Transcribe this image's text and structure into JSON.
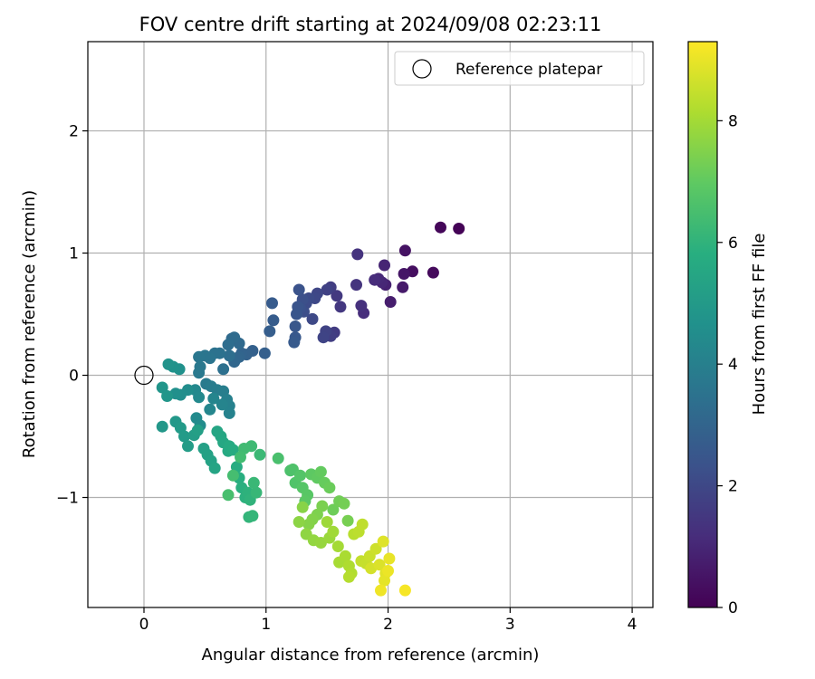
{
  "chart_data": {
    "type": "scatter",
    "title": "FOV centre drift starting at 2024/09/08 02:23:11",
    "xlabel": "Angular distance from reference (arcmin)",
    "ylabel": "Rotation from reference (arcmin)",
    "xlim": [
      -0.46,
      4.17
    ],
    "ylim": [
      -1.9,
      2.73
    ],
    "xticks": [
      0,
      1,
      2,
      3,
      4
    ],
    "yticks": [
      -1,
      0,
      1,
      2
    ],
    "xtick_labels": [
      "0",
      "1",
      "2",
      "3",
      "4"
    ],
    "ytick_labels": [
      "−1",
      "0",
      "1",
      "2"
    ],
    "grid": true,
    "legend_position": "top-right",
    "legend": [
      {
        "label": "Reference platepar",
        "marker": "open-circle"
      }
    ],
    "reference_point": {
      "x": 0,
      "y": 0
    },
    "colorbar": {
      "label": "Hours from first FF file",
      "colormap": "viridis",
      "range": [
        0,
        9.3
      ],
      "ticks": [
        0,
        2,
        4,
        6,
        8
      ],
      "tick_labels": [
        "0",
        "2",
        "4",
        "6",
        "8"
      ]
    },
    "points_xyc": [
      [
        2.58,
        1.2,
        0.05
      ],
      [
        2.43,
        1.21,
        0.15
      ],
      [
        2.37,
        0.84,
        0.25
      ],
      [
        2.2,
        0.85,
        0.35
      ],
      [
        2.14,
        1.02,
        0.45
      ],
      [
        2.13,
        0.83,
        0.55
      ],
      [
        2.12,
        0.72,
        0.65
      ],
      [
        2.02,
        0.6,
        0.75
      ],
      [
        1.98,
        0.74,
        0.85
      ],
      [
        1.97,
        0.9,
        0.95
      ],
      [
        1.95,
        0.76,
        1.0
      ],
      [
        1.92,
        0.79,
        1.05
      ],
      [
        1.89,
        0.78,
        1.15
      ],
      [
        1.8,
        0.51,
        1.2
      ],
      [
        1.78,
        0.57,
        1.3
      ],
      [
        1.75,
        0.99,
        1.35
      ],
      [
        1.74,
        0.74,
        1.4
      ],
      [
        1.61,
        0.56,
        1.5
      ],
      [
        1.58,
        0.65,
        1.55
      ],
      [
        1.56,
        0.35,
        1.6
      ],
      [
        1.53,
        0.72,
        1.65
      ],
      [
        1.53,
        0.32,
        1.7
      ],
      [
        1.5,
        0.7,
        1.8
      ],
      [
        1.49,
        0.36,
        1.85
      ],
      [
        1.47,
        0.31,
        1.9
      ],
      [
        1.42,
        0.67,
        1.95
      ],
      [
        1.4,
        0.63,
        2.0
      ],
      [
        1.38,
        0.46,
        2.05
      ],
      [
        1.35,
        0.63,
        2.1
      ],
      [
        1.33,
        0.59,
        2.15
      ],
      [
        1.31,
        0.52,
        2.2
      ],
      [
        1.3,
        0.62,
        2.25
      ],
      [
        1.28,
        0.55,
        2.3
      ],
      [
        1.27,
        0.7,
        2.35
      ],
      [
        1.26,
        0.56,
        2.4
      ],
      [
        1.25,
        0.5,
        2.45
      ],
      [
        1.24,
        0.4,
        2.5
      ],
      [
        1.24,
        0.31,
        2.55
      ],
      [
        1.23,
        0.27,
        2.6
      ],
      [
        1.05,
        0.59,
        2.65
      ],
      [
        1.06,
        0.45,
        2.7
      ],
      [
        1.03,
        0.36,
        2.75
      ],
      [
        0.99,
        0.18,
        2.8
      ],
      [
        0.89,
        0.2,
        2.85
      ],
      [
        0.84,
        0.17,
        2.9
      ],
      [
        0.8,
        0.18,
        2.95
      ],
      [
        0.78,
        0.15,
        3.0
      ],
      [
        0.76,
        0.14,
        3.05
      ],
      [
        0.74,
        0.11,
        3.1
      ],
      [
        0.78,
        0.26,
        3.15
      ],
      [
        0.72,
        0.3,
        3.2
      ],
      [
        0.74,
        0.31,
        3.25
      ],
      [
        0.69,
        0.25,
        3.3
      ],
      [
        0.7,
        0.16,
        3.35
      ],
      [
        0.65,
        0.05,
        3.4
      ],
      [
        0.62,
        0.18,
        3.45
      ],
      [
        0.58,
        0.18,
        3.5
      ],
      [
        0.54,
        0.14,
        3.55
      ],
      [
        0.5,
        0.16,
        3.6
      ],
      [
        0.45,
        0.15,
        3.65
      ],
      [
        0.46,
        0.07,
        3.7
      ],
      [
        0.45,
        0.02,
        3.75
      ],
      [
        0.51,
        -0.07,
        3.8
      ],
      [
        0.55,
        -0.09,
        3.85
      ],
      [
        0.6,
        -0.12,
        3.9
      ],
      [
        0.65,
        -0.13,
        3.95
      ],
      [
        0.68,
        -0.2,
        4.0
      ],
      [
        0.7,
        -0.25,
        4.05
      ],
      [
        0.7,
        -0.31,
        4.1
      ],
      [
        0.64,
        -0.24,
        4.15
      ],
      [
        0.57,
        -0.19,
        4.2
      ],
      [
        0.54,
        -0.28,
        4.25
      ],
      [
        0.42,
        -0.12,
        4.3
      ],
      [
        0.45,
        -0.18,
        4.35
      ],
      [
        0.43,
        -0.35,
        4.4
      ],
      [
        0.46,
        -0.41,
        4.45
      ],
      [
        0.36,
        -0.12,
        4.5
      ],
      [
        0.3,
        -0.16,
        4.55
      ],
      [
        0.26,
        -0.15,
        4.6
      ],
      [
        0.29,
        0.05,
        4.65
      ],
      [
        0.24,
        0.07,
        4.7
      ],
      [
        0.2,
        0.09,
        4.75
      ],
      [
        0.15,
        -0.1,
        4.8
      ],
      [
        0.19,
        -0.17,
        4.85
      ],
      [
        0.15,
        -0.42,
        4.9
      ],
      [
        0.26,
        -0.38,
        4.95
      ],
      [
        0.3,
        -0.43,
        5.0
      ],
      [
        0.33,
        -0.5,
        5.05
      ],
      [
        0.36,
        -0.58,
        5.1
      ],
      [
        0.41,
        -0.49,
        5.15
      ],
      [
        0.44,
        -0.45,
        5.2
      ],
      [
        0.49,
        -0.6,
        5.25
      ],
      [
        0.52,
        -0.65,
        5.3
      ],
      [
        0.55,
        -0.7,
        5.35
      ],
      [
        0.58,
        -0.76,
        5.4
      ],
      [
        0.6,
        -0.46,
        5.45
      ],
      [
        0.63,
        -0.5,
        5.5
      ],
      [
        0.65,
        -0.55,
        5.55
      ],
      [
        0.69,
        -0.62,
        5.6
      ],
      [
        0.7,
        -0.58,
        5.65
      ],
      [
        0.73,
        -0.61,
        5.7
      ],
      [
        0.76,
        -0.75,
        5.75
      ],
      [
        0.78,
        -0.84,
        5.8
      ],
      [
        0.8,
        -0.92,
        5.85
      ],
      [
        0.83,
        -1.0,
        5.9
      ],
      [
        0.85,
        -0.96,
        5.95
      ],
      [
        0.87,
        -1.02,
        6.0
      ],
      [
        0.86,
        -1.16,
        6.05
      ],
      [
        0.89,
        -1.15,
        6.1
      ],
      [
        0.92,
        -0.96,
        6.15
      ],
      [
        0.9,
        -0.88,
        6.2
      ],
      [
        0.95,
        -0.65,
        6.25
      ],
      [
        0.88,
        -0.58,
        6.3
      ],
      [
        0.82,
        -0.6,
        6.35
      ],
      [
        0.79,
        -0.67,
        6.4
      ],
      [
        0.73,
        -0.82,
        6.45
      ],
      [
        0.69,
        -0.98,
        6.5
      ],
      [
        1.1,
        -0.68,
        6.55
      ],
      [
        1.2,
        -0.78,
        6.6
      ],
      [
        1.22,
        -0.77,
        6.65
      ],
      [
        1.24,
        -0.88,
        6.7
      ],
      [
        1.28,
        -0.82,
        6.75
      ],
      [
        1.3,
        -0.92,
        6.8
      ],
      [
        1.34,
        -0.98,
        6.85
      ],
      [
        1.32,
        -1.03,
        6.9
      ],
      [
        1.37,
        -0.81,
        6.95
      ],
      [
        1.42,
        -0.84,
        7.0
      ],
      [
        1.45,
        -0.79,
        7.05
      ],
      [
        1.48,
        -0.88,
        7.1
      ],
      [
        1.52,
        -0.92,
        7.15
      ],
      [
        1.55,
        -1.1,
        7.2
      ],
      [
        1.6,
        -1.03,
        7.25
      ],
      [
        1.64,
        -1.05,
        7.3
      ],
      [
        1.67,
        -1.19,
        7.35
      ],
      [
        1.46,
        -1.07,
        7.4
      ],
      [
        1.42,
        -1.14,
        7.45
      ],
      [
        1.38,
        -1.18,
        7.5
      ],
      [
        1.35,
        -1.22,
        7.55
      ],
      [
        1.3,
        -1.08,
        7.6
      ],
      [
        1.27,
        -1.2,
        7.65
      ],
      [
        1.33,
        -1.3,
        7.7
      ],
      [
        1.39,
        -1.35,
        7.75
      ],
      [
        1.45,
        -1.37,
        7.8
      ],
      [
        1.52,
        -1.33,
        7.85
      ],
      [
        1.5,
        -1.2,
        7.9
      ],
      [
        1.55,
        -1.28,
        7.95
      ],
      [
        1.59,
        -1.4,
        8.0
      ],
      [
        1.6,
        -1.53,
        8.05
      ],
      [
        1.65,
        -1.48,
        8.1
      ],
      [
        1.68,
        -1.56,
        8.15
      ],
      [
        1.7,
        -1.62,
        8.2
      ],
      [
        1.68,
        -1.65,
        8.25
      ],
      [
        1.72,
        -1.3,
        8.3
      ],
      [
        1.76,
        -1.28,
        8.35
      ],
      [
        1.79,
        -1.22,
        8.4
      ],
      [
        1.78,
        -1.52,
        8.45
      ],
      [
        1.82,
        -1.54,
        8.5
      ],
      [
        1.85,
        -1.48,
        8.55
      ],
      [
        1.9,
        -1.42,
        8.6
      ],
      [
        1.86,
        -1.58,
        8.7
      ],
      [
        1.93,
        -1.55,
        8.8
      ],
      [
        1.96,
        -1.36,
        8.85
      ],
      [
        1.98,
        -1.62,
        8.9
      ],
      [
        1.97,
        -1.68,
        8.95
      ],
      [
        2.01,
        -1.5,
        9.0
      ],
      [
        2.0,
        -1.6,
        9.05
      ],
      [
        1.94,
        -1.76,
        9.1
      ],
      [
        2.14,
        -1.76,
        9.2
      ]
    ]
  }
}
